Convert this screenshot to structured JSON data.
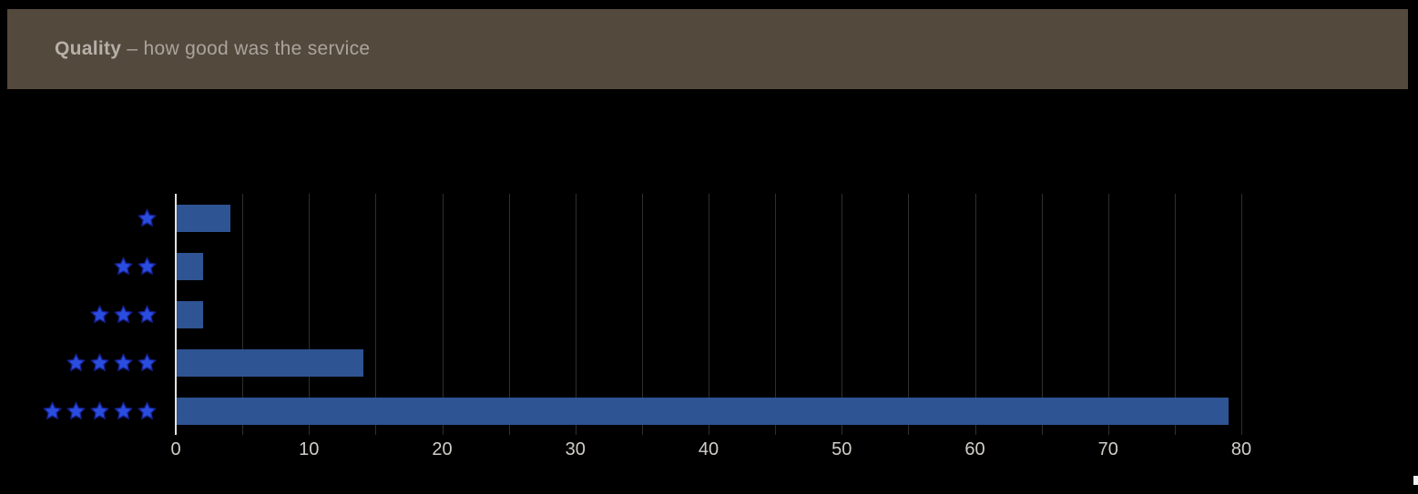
{
  "header": {
    "title_bold": "Quality",
    "title_rest": " – how good was the service"
  },
  "chart_data": {
    "type": "bar",
    "orientation": "horizontal",
    "title": "Quality – how good was the service",
    "categories": [
      "1 star",
      "2 stars",
      "3 stars",
      "4 stars",
      "5 stars"
    ],
    "star_counts": [
      1,
      2,
      3,
      4,
      5
    ],
    "values": [
      4,
      2,
      2,
      14,
      79
    ],
    "xlabel": "",
    "ylabel": "",
    "xlim": [
      0,
      80
    ],
    "x_ticks": [
      0,
      10,
      20,
      30,
      40,
      50,
      60,
      70,
      80
    ],
    "gridline_step": 5,
    "grid": true,
    "legend": false,
    "bar_color": "#2e5493",
    "star_fill_color": "#2a4de0",
    "star_outline_color": "#16208c",
    "grid_color": "#2f2f2f",
    "axis_line_color": "#e4e1dc",
    "tick_label_color": "#d1cdc8",
    "header_bg_color": "#54493d",
    "background_color": "#000000"
  }
}
